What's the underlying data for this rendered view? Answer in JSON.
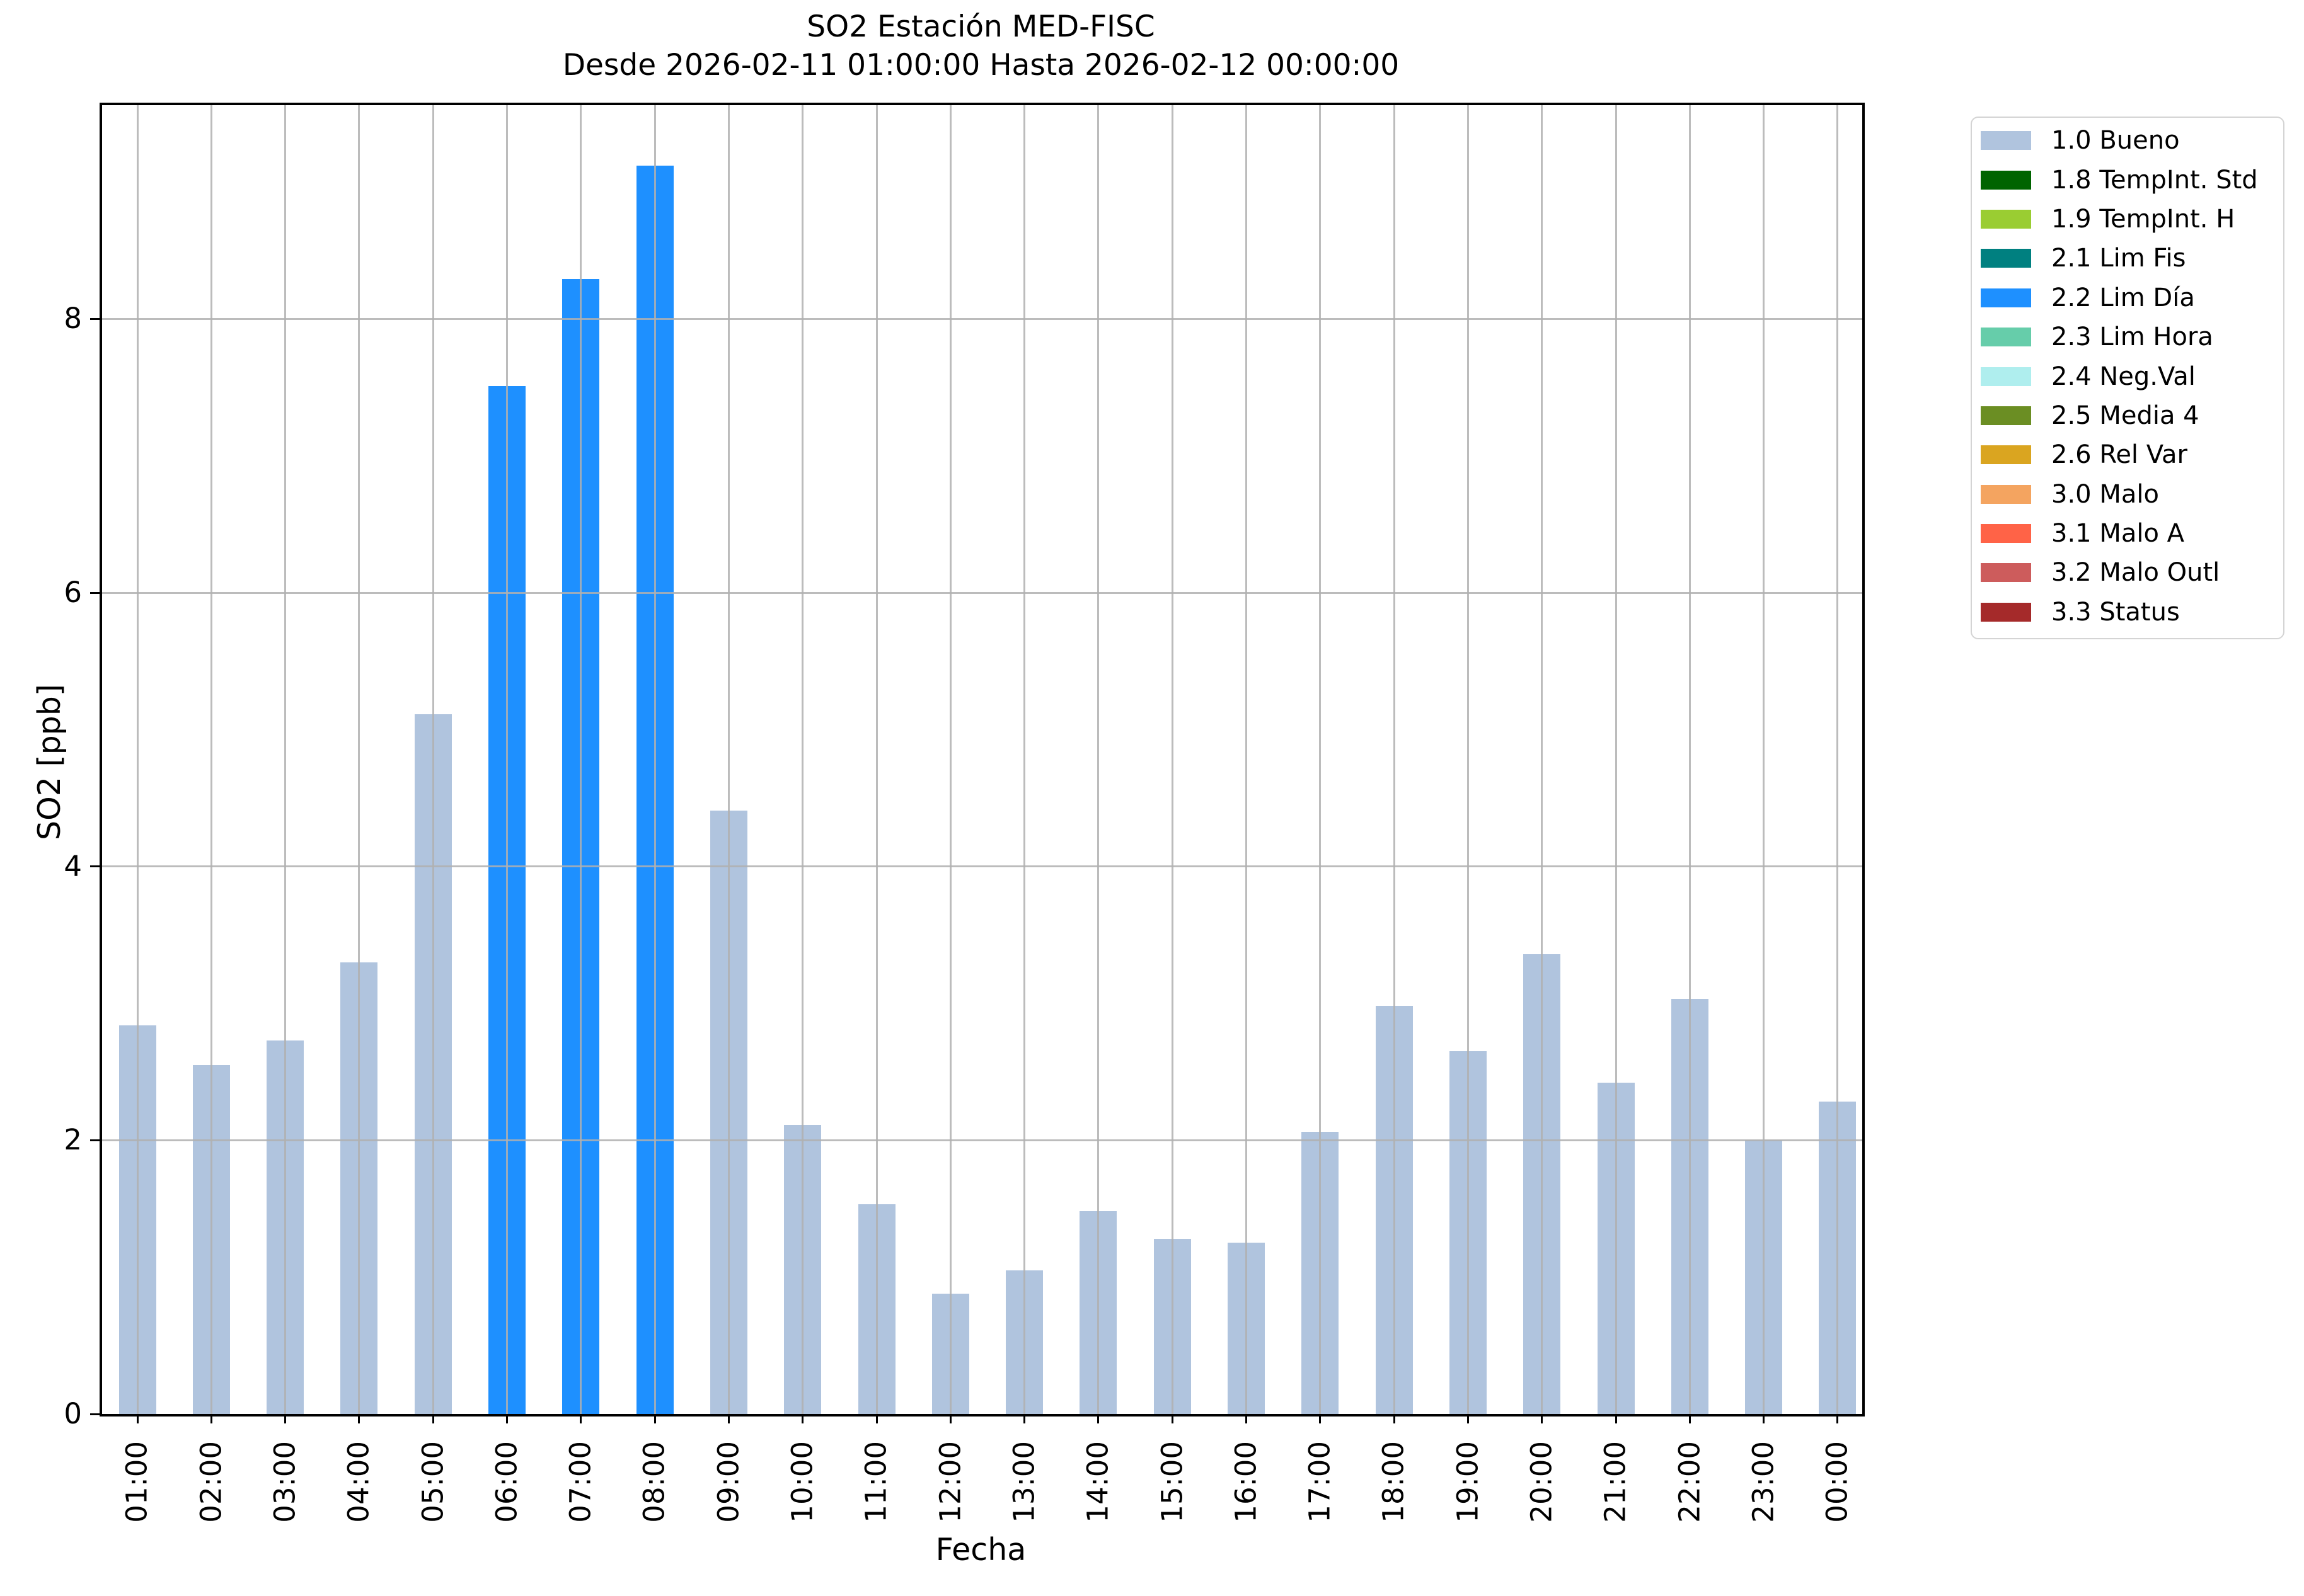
{
  "chart_data": {
    "type": "bar",
    "title": "SO2 Estación MED-FISC",
    "subtitle": "Desde 2026-02-11 01:00:00 Hasta 2026-02-12 00:00:00",
    "xlabel": "Fecha",
    "ylabel": "SO2 [ppb]",
    "categories": [
      "01:00",
      "02:00",
      "03:00",
      "04:00",
      "05:00",
      "06:00",
      "07:00",
      "08:00",
      "09:00",
      "10:00",
      "11:00",
      "12:00",
      "13:00",
      "14:00",
      "15:00",
      "16:00",
      "17:00",
      "18:00",
      "19:00",
      "20:00",
      "21:00",
      "22:00",
      "23:00",
      "00:00"
    ],
    "values": [
      2.84,
      2.55,
      2.73,
      3.3,
      5.11,
      7.51,
      8.29,
      9.12,
      4.41,
      2.11,
      1.53,
      0.88,
      1.05,
      1.48,
      1.28,
      1.25,
      2.06,
      2.98,
      2.65,
      3.36,
      2.42,
      3.03,
      2.0,
      2.28
    ],
    "bar_status": [
      "1.0 Bueno",
      "1.0 Bueno",
      "1.0 Bueno",
      "1.0 Bueno",
      "1.0 Bueno",
      "2.2 Lim Día",
      "2.2 Lim Día",
      "2.2 Lim Día",
      "1.0 Bueno",
      "1.0 Bueno",
      "1.0 Bueno",
      "1.0 Bueno",
      "1.0 Bueno",
      "1.0 Bueno",
      "1.0 Bueno",
      "1.0 Bueno",
      "1.0 Bueno",
      "1.0 Bueno",
      "1.0 Bueno",
      "1.0 Bueno",
      "1.0 Bueno",
      "1.0 Bueno",
      "1.0 Bueno",
      "1.0 Bueno"
    ],
    "status_colors": {
      "1.0 Bueno": "#b0c4de",
      "2.2 Lim Día": "#1e90ff"
    },
    "ylim": [
      0,
      9.58
    ],
    "yticks": [
      0,
      2,
      4,
      6,
      8
    ],
    "grid": true,
    "grid_color": "#b0b0b0",
    "legend_position": "outside upper right",
    "legend": [
      {
        "label": "1.0 Bueno",
        "color": "#b0c4de"
      },
      {
        "label": "1.8 TempInt. Std",
        "color": "#006400"
      },
      {
        "label": "1.9 TempInt. H",
        "color": "#9acd32"
      },
      {
        "label": "2.1 Lim Fis",
        "color": "#008080"
      },
      {
        "label": "2.2 Lim Día",
        "color": "#1e90ff"
      },
      {
        "label": "2.3 Lim Hora",
        "color": "#66cdaa"
      },
      {
        "label": "2.4 Neg.Val",
        "color": "#afeeee"
      },
      {
        "label": "2.5 Media 4",
        "color": "#6b8e23"
      },
      {
        "label": "2.6 Rel Var",
        "color": "#daa520"
      },
      {
        "label": "3.0 Malo",
        "color": "#f4a460"
      },
      {
        "label": "3.1 Malo A",
        "color": "#ff6347"
      },
      {
        "label": "3.2 Malo Outl",
        "color": "#cd5c5c"
      },
      {
        "label": "3.3 Status",
        "color": "#a52a2a"
      }
    ]
  }
}
